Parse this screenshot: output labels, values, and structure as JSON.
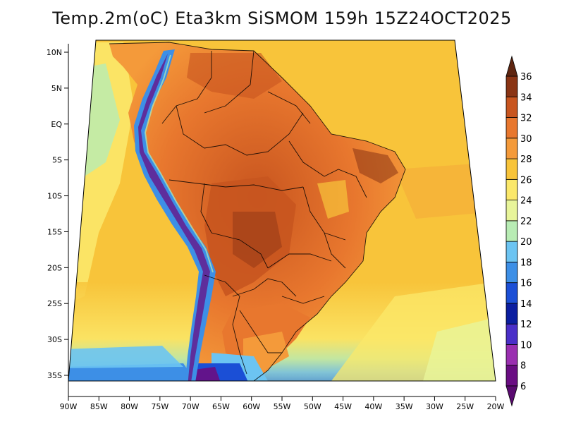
{
  "title": "Temp.2m(oC) Eta3km SiSMOM 159h 15Z24OCT2025",
  "map": {
    "variable": "2 m air temperature",
    "units": "oC",
    "lon_range": [
      -90,
      -20
    ],
    "lat_range": [
      -38,
      11
    ],
    "lat_ticks": [
      {
        "value": 10,
        "label": "10N"
      },
      {
        "value": 5,
        "label": "5N"
      },
      {
        "value": 0,
        "label": "EQ"
      },
      {
        "value": -5,
        "label": "5S"
      },
      {
        "value": -10,
        "label": "10S"
      },
      {
        "value": -15,
        "label": "15S"
      },
      {
        "value": -20,
        "label": "20S"
      },
      {
        "value": -25,
        "label": "25S"
      },
      {
        "value": -30,
        "label": "30S"
      },
      {
        "value": -35,
        "label": "35S"
      }
    ],
    "lon_ticks": [
      {
        "value": -90,
        "label": "90W"
      },
      {
        "value": -85,
        "label": "85W"
      },
      {
        "value": -80,
        "label": "80W"
      },
      {
        "value": -75,
        "label": "75W"
      },
      {
        "value": -70,
        "label": "70W"
      },
      {
        "value": -65,
        "label": "65W"
      },
      {
        "value": -60,
        "label": "60W"
      },
      {
        "value": -55,
        "label": "55W"
      },
      {
        "value": -50,
        "label": "50W"
      },
      {
        "value": -45,
        "label": "45W"
      },
      {
        "value": -40,
        "label": "40W"
      },
      {
        "value": -35,
        "label": "35W"
      },
      {
        "value": -30,
        "label": "30W"
      },
      {
        "value": -25,
        "label": "25W"
      },
      {
        "value": -20,
        "label": "20W"
      }
    ]
  },
  "colorbar": {
    "levels": [
      6,
      8,
      10,
      12,
      14,
      16,
      18,
      20,
      22,
      24,
      26,
      28,
      30,
      32,
      34,
      36
    ],
    "colors": [
      "#6a0d83",
      "#9a2fb0",
      "#4a2fc8",
      "#0b1ea0",
      "#1b4fd6",
      "#3d8fe6",
      "#6cc4f2",
      "#b8ecb4",
      "#e8f59a",
      "#fbe86a",
      "#f8c43a",
      "#f49a3a",
      "#e8772e",
      "#c8551f",
      "#8a3414"
    ],
    "under_color": "#5a0a70",
    "over_color": "#5e2510"
  }
}
